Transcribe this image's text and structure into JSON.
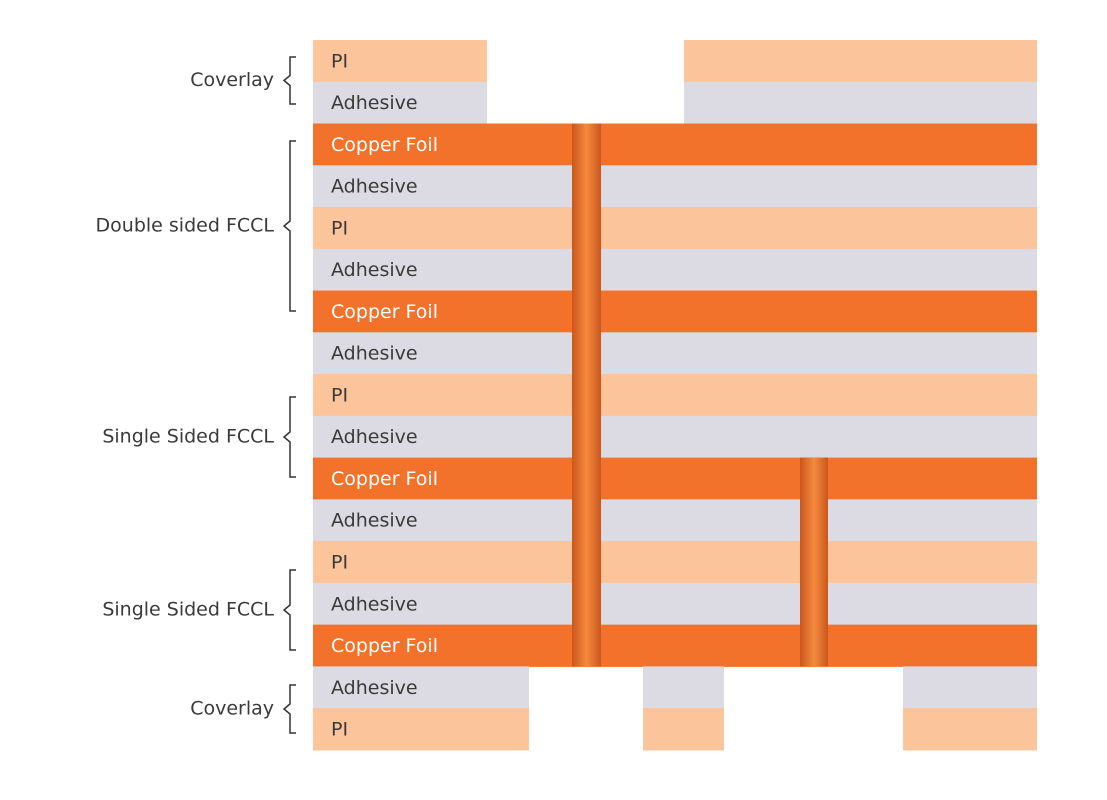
{
  "groups": [
    {
      "label": "Coverlay"
    },
    {
      "label": "Double sided FCCL"
    },
    {
      "label": "Single Sided FCCL"
    },
    {
      "label": "Single Sided FCCL"
    },
    {
      "label": "Coverlay"
    }
  ],
  "layers": [
    {
      "label": "PI"
    },
    {
      "label": "Adhesive"
    },
    {
      "label": "Copper Foil"
    },
    {
      "label": "Adhesive"
    },
    {
      "label": "PI"
    },
    {
      "label": "Adhesive"
    },
    {
      "label": "Copper Foil"
    },
    {
      "label": "Adhesive"
    },
    {
      "label": "PI"
    },
    {
      "label": "Adhesive"
    },
    {
      "label": "Copper Foil"
    },
    {
      "label": "Adhesive"
    },
    {
      "label": "PI"
    },
    {
      "label": "Adhesive"
    },
    {
      "label": "Copper Foil"
    },
    {
      "label": "Adhesive"
    },
    {
      "label": "PI"
    }
  ]
}
